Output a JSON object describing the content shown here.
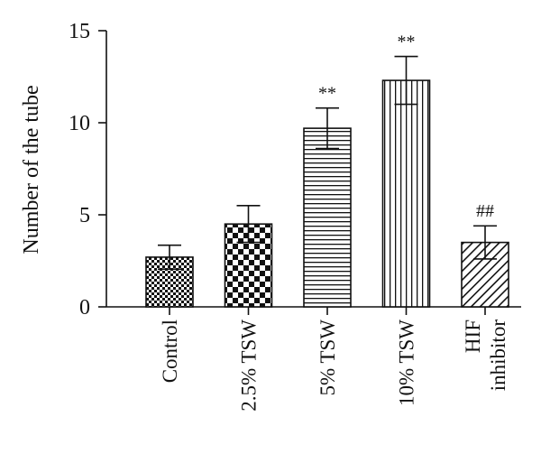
{
  "chart_data": {
    "type": "bar",
    "title": "",
    "xlabel": "",
    "ylabel": "Number of the tube",
    "ylim": [
      0,
      15
    ],
    "yticks": [
      0,
      5,
      10,
      15
    ],
    "grid": false,
    "categories": [
      "Control",
      "2.5% TSW",
      "5% TSW",
      "10% TSW",
      "HIF inhibitor"
    ],
    "category_lines": [
      [
        "Control"
      ],
      [
        "2.5% TSW"
      ],
      [
        "5% TSW"
      ],
      [
        "10% TSW"
      ],
      [
        "HIF",
        "inhibitor"
      ]
    ],
    "values": [
      2.7,
      4.5,
      9.7,
      12.3,
      3.5
    ],
    "errors": [
      0.65,
      1.0,
      1.1,
      1.3,
      0.9
    ],
    "annotations": [
      "",
      "",
      "**",
      "**",
      "##"
    ],
    "patterns": [
      "dense-checker",
      "checker",
      "horizontal-lines",
      "vertical-lines",
      "diagonal-lines"
    ],
    "bar_color": "#000000"
  }
}
